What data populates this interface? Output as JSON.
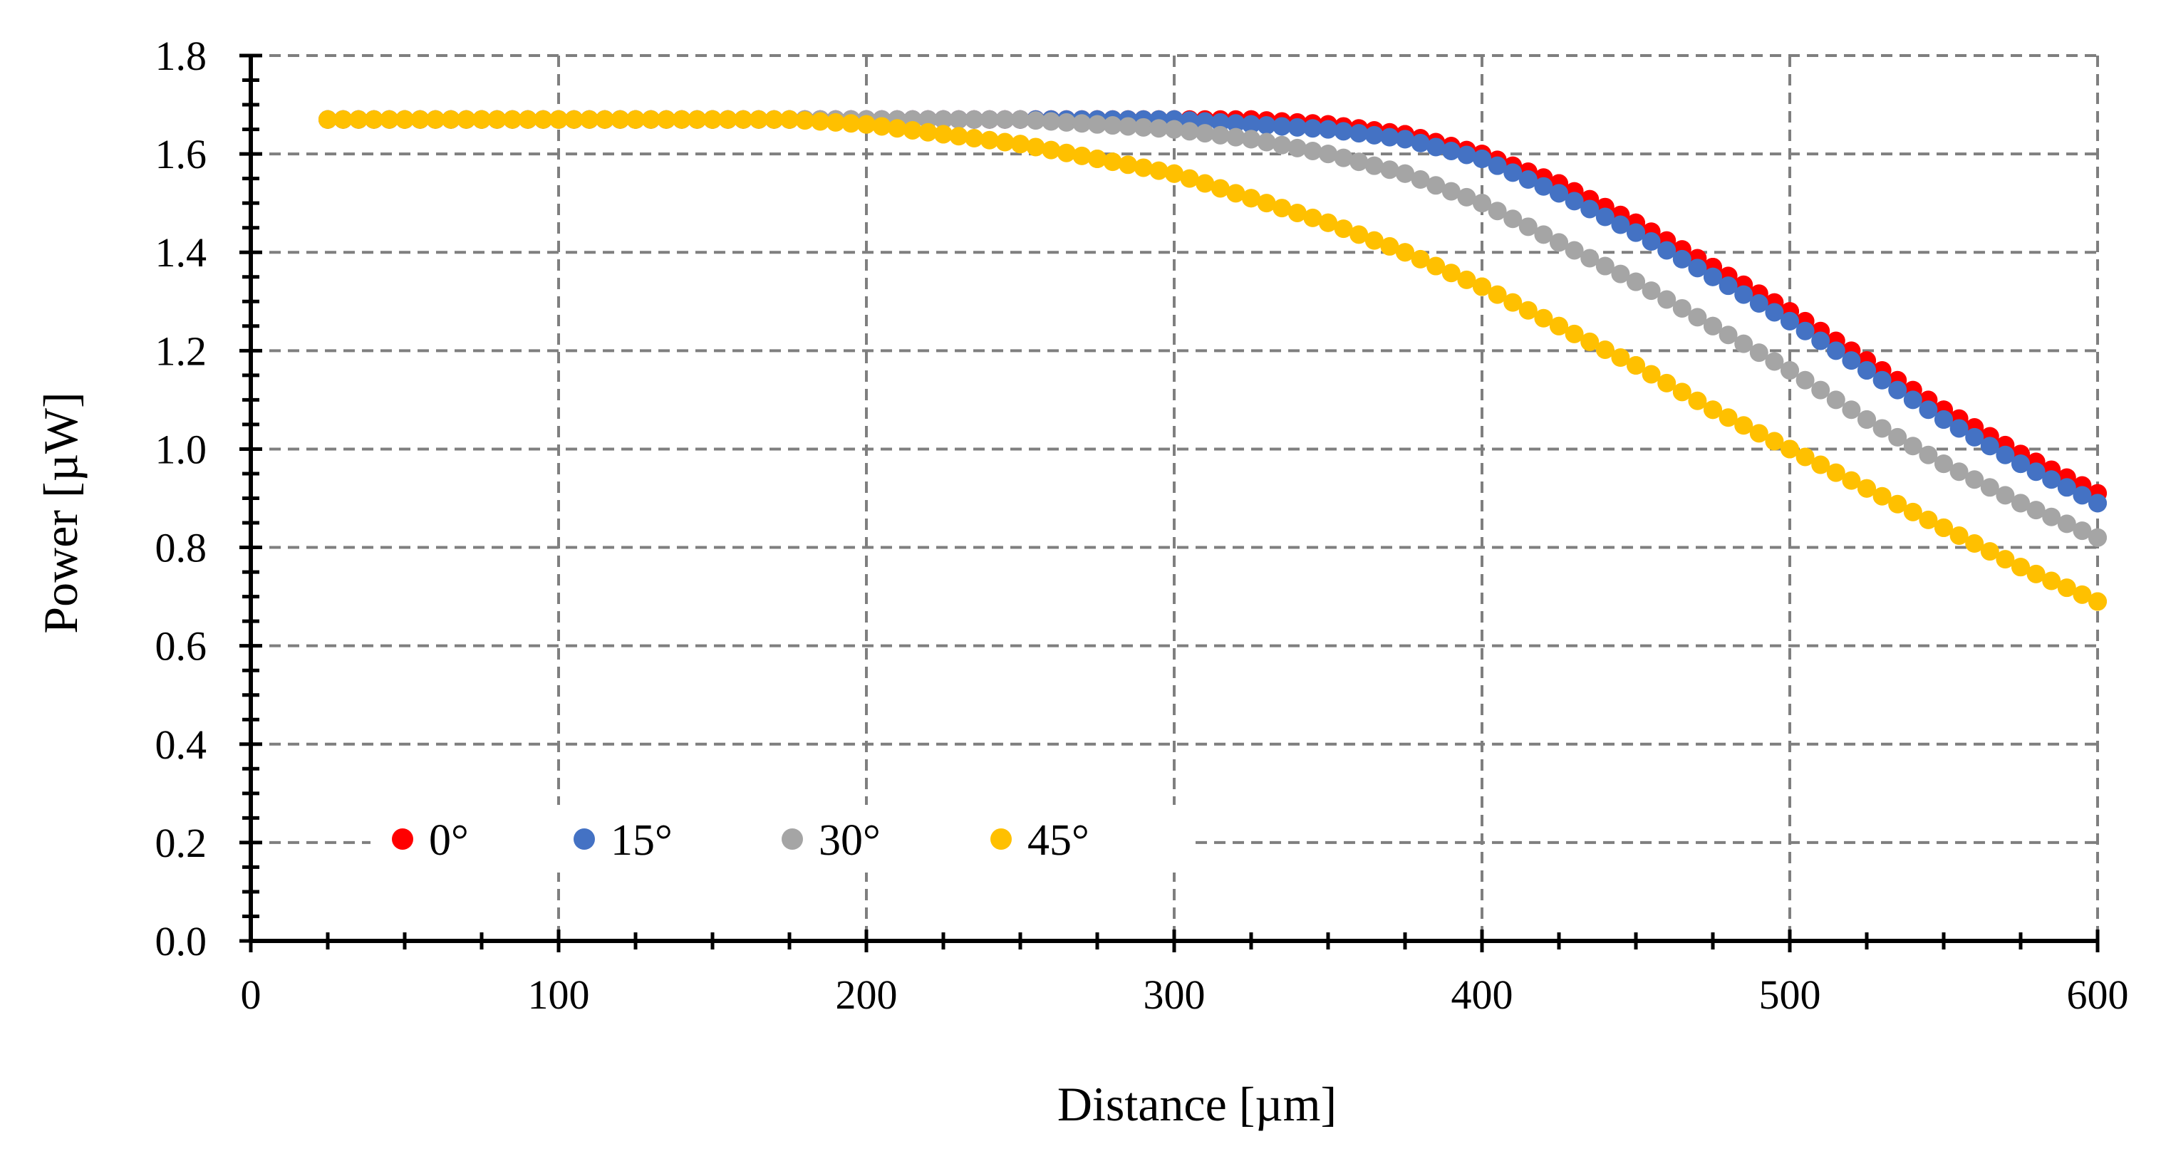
{
  "chart_data": {
    "type": "scatter",
    "title": "",
    "xlabel": "Distance [µm]",
    "ylabel": "Power [µW]",
    "xlim": [
      0,
      600
    ],
    "ylim": [
      0,
      1.8
    ],
    "x_ticks": [
      "0",
      "100",
      "200",
      "300",
      "400",
      "500",
      "600"
    ],
    "y_ticks": [
      "0.0",
      "0.2",
      "0.4",
      "0.6",
      "0.8",
      "1.0",
      "1.2",
      "1.4",
      "1.6",
      "1.8"
    ],
    "grid": true,
    "legend_position": "bottom-left",
    "x": [
      25,
      50,
      75,
      100,
      125,
      150,
      175,
      200,
      225,
      250,
      275,
      300,
      325,
      350,
      375,
      400,
      425,
      450,
      475,
      500,
      525,
      550,
      575,
      600
    ],
    "series": [
      {
        "name": "0°",
        "color": "#ff0000",
        "values": [
          1.67,
          1.67,
          1.67,
          1.67,
          1.67,
          1.67,
          1.67,
          1.67,
          1.67,
          1.67,
          1.67,
          1.67,
          1.67,
          1.66,
          1.64,
          1.6,
          1.54,
          1.46,
          1.37,
          1.28,
          1.18,
          1.08,
          0.99,
          0.91
        ]
      },
      {
        "name": "15°",
        "color": "#4472c4",
        "values": [
          1.67,
          1.67,
          1.67,
          1.67,
          1.67,
          1.67,
          1.67,
          1.67,
          1.67,
          1.67,
          1.67,
          1.67,
          1.66,
          1.65,
          1.63,
          1.59,
          1.52,
          1.44,
          1.35,
          1.26,
          1.16,
          1.06,
          0.97,
          0.89
        ]
      },
      {
        "name": "30°",
        "color": "#a5a5a5",
        "values": [
          1.67,
          1.67,
          1.67,
          1.67,
          1.67,
          1.67,
          1.67,
          1.67,
          1.67,
          1.67,
          1.66,
          1.65,
          1.63,
          1.6,
          1.56,
          1.5,
          1.42,
          1.34,
          1.25,
          1.16,
          1.06,
          0.97,
          0.89,
          0.82
        ]
      },
      {
        "name": "45°",
        "color": "#ffc000",
        "values": [
          1.67,
          1.67,
          1.67,
          1.67,
          1.67,
          1.67,
          1.67,
          1.66,
          1.64,
          1.62,
          1.59,
          1.56,
          1.51,
          1.46,
          1.4,
          1.33,
          1.25,
          1.17,
          1.08,
          1.0,
          0.92,
          0.84,
          0.76,
          0.69
        ]
      }
    ]
  }
}
